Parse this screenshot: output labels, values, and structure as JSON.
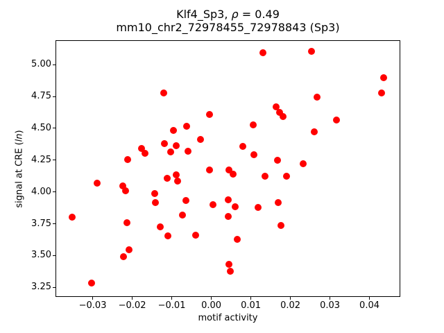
{
  "figure": {
    "title_prefix": "Klf4_Sp3, ",
    "title_rho": "ρ",
    "title_rest": " = 0.49",
    "subtitle": "mm10_chr2_72978455_72978843 (Sp3)"
  },
  "chart_data": {
    "type": "scatter",
    "title": "Klf4_Sp3, ρ = 0.49",
    "subtitle": "mm10_chr2_72978455_72978843 (Sp3)",
    "xlabel": "motif activity",
    "ylabel": "signal at CRE (ln)",
    "ylabel_prefix": "signal at CRE (",
    "ylabel_italic": "ln",
    "ylabel_suffix": ")",
    "marker_color": "#ff0000",
    "marker_diameter_px": 10,
    "grid": false,
    "legend": null,
    "xlim": [
      -0.0394,
      0.0478
    ],
    "ylim": [
      3.175,
      5.192
    ],
    "xticks": [
      -0.03,
      -0.02,
      -0.01,
      0,
      0.01,
      0.02,
      0.03,
      0.04
    ],
    "xtick_labels": [
      "−0.03",
      "−0.02",
      "−0.01",
      "0.00",
      "0.01",
      "0.02",
      "0.03",
      "0.04"
    ],
    "yticks": [
      3.25,
      3.5,
      3.75,
      4,
      4.25,
      4.5,
      4.75,
      5
    ],
    "ytick_labels": [
      "3.25",
      "3.50",
      "3.75",
      "4.00",
      "4.25",
      "4.50",
      "4.75",
      "5.00"
    ],
    "points": [
      [
        -0.0121,
        4.779
      ],
      [
        -0.0005,
        4.61
      ],
      [
        -0.0062,
        4.516
      ],
      [
        -0.0095,
        4.484
      ],
      [
        -0.0027,
        4.411
      ],
      [
        -0.0119,
        4.379
      ],
      [
        -0.0089,
        4.365
      ],
      [
        -0.0177,
        4.342
      ],
      [
        -0.0168,
        4.302
      ],
      [
        -0.0103,
        4.312
      ],
      [
        -0.0059,
        4.32
      ],
      [
        -0.0212,
        4.253
      ],
      [
        0.013,
        5.096
      ],
      [
        0.0254,
        5.105
      ],
      [
        0.0436,
        4.895
      ],
      [
        0.0431,
        4.777
      ],
      [
        0.0267,
        4.745
      ],
      [
        0.0164,
        4.668
      ],
      [
        0.0173,
        4.625
      ],
      [
        0.0182,
        4.59
      ],
      [
        0.0106,
        4.525
      ],
      [
        0.0317,
        4.565
      ],
      [
        0.026,
        4.474
      ],
      [
        0.0079,
        4.36
      ],
      [
        0.0107,
        4.295
      ],
      [
        0.0167,
        4.248
      ],
      [
        0.0233,
        4.219
      ],
      [
        -0.0289,
        4.067
      ],
      [
        -0.0223,
        4.045
      ],
      [
        -0.0217,
        4.007
      ],
      [
        -0.0143,
        3.987
      ],
      [
        -0.0111,
        4.107
      ],
      [
        -0.0088,
        4.136
      ],
      [
        -0.0086,
        4.087
      ],
      [
        -0.0142,
        3.915
      ],
      [
        -0.0065,
        3.931
      ],
      [
        -0.0004,
        4.174
      ],
      [
        0.0045,
        4.17
      ],
      [
        0.0055,
        4.14
      ],
      [
        0.0004,
        3.898
      ],
      [
        0.0042,
        3.936
      ],
      [
        0.0061,
        3.882
      ],
      [
        -0.0352,
        3.8
      ],
      [
        -0.0073,
        3.82
      ],
      [
        0.0043,
        3.806
      ],
      [
        -0.0213,
        3.757
      ],
      [
        -0.0129,
        3.724
      ],
      [
        -0.0109,
        3.652
      ],
      [
        -0.0039,
        3.661
      ],
      [
        0.0065,
        3.627
      ],
      [
        -0.0208,
        3.547
      ],
      [
        -0.0222,
        3.492
      ],
      [
        0.0044,
        3.431
      ],
      [
        0.0049,
        3.378
      ],
      [
        -0.0302,
        3.284
      ],
      [
        0.0135,
        4.121
      ],
      [
        0.019,
        4.121
      ],
      [
        0.0118,
        3.88
      ],
      [
        0.0169,
        3.915
      ],
      [
        0.0176,
        3.737
      ]
    ]
  }
}
